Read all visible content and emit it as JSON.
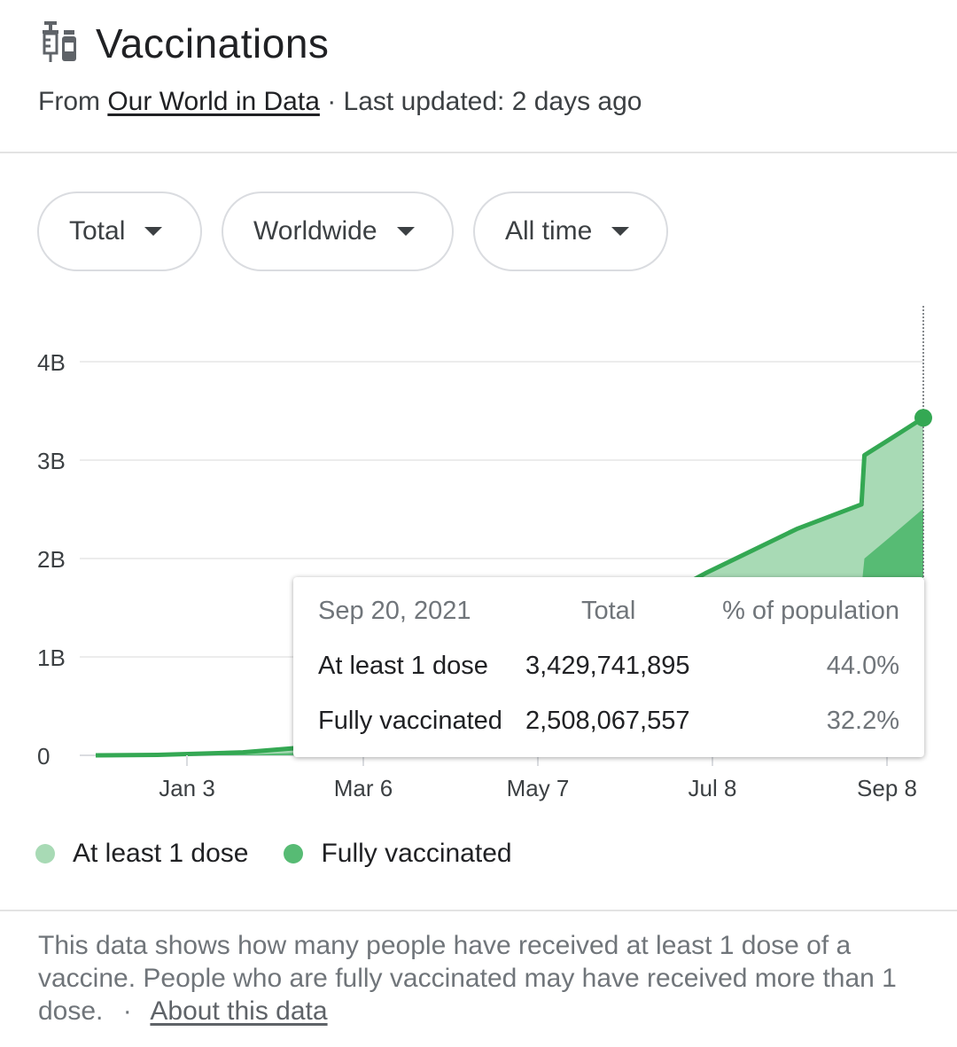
{
  "header": {
    "title": "Vaccinations",
    "source_prefix": "From",
    "source_link": "Our World in Data",
    "updated": "· Last updated: 2 days ago"
  },
  "filters": [
    {
      "label": "Total"
    },
    {
      "label": "Worldwide"
    },
    {
      "label": "All time"
    }
  ],
  "tooltip": {
    "date": "Sep 20, 2021",
    "col_total": "Total",
    "col_percent": "% of population",
    "rows": [
      {
        "label": "At least 1 dose",
        "total": "3,429,741,895",
        "percent": "44.0%"
      },
      {
        "label": "Fully vaccinated",
        "total": "2,508,067,557",
        "percent": "32.2%"
      }
    ]
  },
  "chart_data": {
    "type": "area",
    "x_ticks": [
      "Jan 3",
      "Mar 6",
      "May 7",
      "Jul 8",
      "Sep 8"
    ],
    "y_ticks": [
      "0",
      "1B",
      "2B",
      "3B",
      "4B"
    ],
    "ylim": [
      0,
      4000000000
    ],
    "x": [
      "2020-12-13",
      "2021-01-03",
      "2021-02-01",
      "2021-03-06",
      "2021-04-06",
      "2021-05-07",
      "2021-06-07",
      "2021-07-08",
      "2021-08-08",
      "2021-08-30",
      "2021-08-31",
      "2021-09-08",
      "2021-09-20"
    ],
    "series": [
      {
        "name": "At least 1 dose",
        "color": "#a8dab5",
        "values": [
          0,
          5000000,
          30000000,
          110000000,
          380000000,
          800000000,
          1350000000,
          1850000000,
          2300000000,
          2550000000,
          3050000000,
          3200000000,
          3429741895
        ]
      },
      {
        "name": "Fully vaccinated",
        "color": "#57bb74",
        "values": [
          0,
          1000000,
          8000000,
          40000000,
          120000000,
          300000000,
          600000000,
          1000000000,
          1450000000,
          1700000000,
          2000000000,
          2200000000,
          2508067557
        ]
      }
    ],
    "grid": true
  },
  "legend": [
    {
      "label": "At least 1 dose",
      "color": "#a8dab5"
    },
    {
      "label": "Fully vaccinated",
      "color": "#57bb74"
    }
  ],
  "footer": {
    "text": "This data shows how many people have received at least 1 dose of a vaccine. People who are fully vaccinated may have received more than 1 dose.",
    "separator": "·",
    "link": "About this data"
  }
}
